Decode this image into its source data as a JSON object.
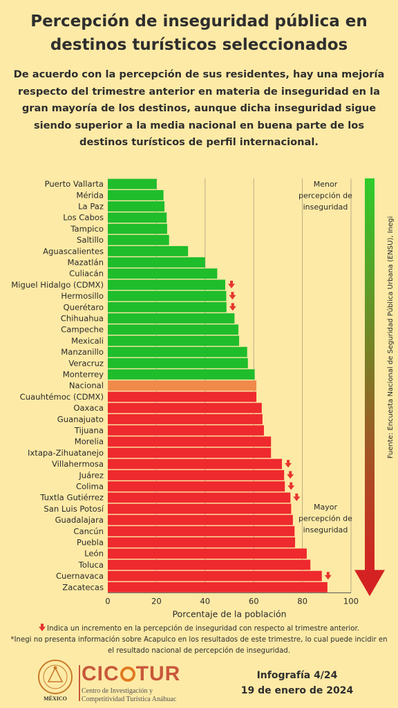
{
  "header": {
    "title": "Percepción de inseguridad pública en destinos turísticos seleccionados",
    "subtitle": "De acuerdo con la percepción de sus residentes, hay una mejoría respecto del trimestre anterior en materia de inseguridad en la gran mayoría de los destinos, aunque dicha inseguridad sigue siendo superior a la media nacional en buena parte de los destinos turísticos de perfil internacional."
  },
  "chart_data": {
    "type": "bar",
    "orientation": "horizontal",
    "xlabel": "Porcentaje de la población",
    "xlim": [
      0,
      100
    ],
    "xticks": [
      "0",
      "20",
      "40",
      "60",
      "80",
      "100"
    ],
    "grid": true,
    "categories": [
      "Puerto Vallarta",
      "Mérida",
      "La Paz",
      "Los Cabos",
      "Tampico",
      "Saltillo",
      "Aguascalientes",
      "Mazatlán",
      "Culiacán",
      "Miguel Hidalgo (CDMX)",
      "Hermosillo",
      "Querétaro",
      "Chihuahua",
      "Campeche",
      "Mexicali",
      "Manzanillo",
      "Veracruz",
      "Monterrey",
      "Nacional",
      "Cuauhtémoc (CDMX)",
      "Oaxaca",
      "Guanajuato",
      "Tijuana",
      "Morelia",
      "Ixtapa-Zihuatanejo",
      "Villahermosa",
      "Juárez",
      "Colima",
      "Tuxtla Gutiérrez",
      "San Luis Potosí",
      "Guadalajara",
      "Cancún",
      "Puebla",
      "León",
      "Toluca",
      "Cuernavaca",
      "Zacatecas"
    ],
    "values": [
      20.1,
      22.9,
      23.3,
      24.2,
      24.4,
      25.2,
      33.0,
      40.0,
      45.0,
      48.3,
      48.7,
      48.8,
      52.1,
      53.7,
      54.0,
      57.3,
      57.6,
      60.4,
      61.1,
      61.1,
      63.3,
      63.6,
      64.2,
      67.1,
      67.1,
      71.6,
      72.5,
      72.8,
      75.1,
      75.4,
      76.1,
      76.8,
      77.0,
      81.8,
      83.3,
      88.0,
      90.3
    ],
    "increase_flags": [
      false,
      false,
      false,
      false,
      false,
      false,
      false,
      false,
      false,
      true,
      true,
      true,
      false,
      false,
      false,
      false,
      false,
      false,
      false,
      false,
      false,
      false,
      false,
      false,
      false,
      true,
      true,
      true,
      true,
      false,
      false,
      false,
      false,
      false,
      false,
      true,
      false
    ],
    "reference_category": "Nacional",
    "colors": {
      "below_national": "#1fbd2c",
      "national": "#f08a4b",
      "above_national": "#ee2a2e",
      "increase_arrow": "#e8342f"
    },
    "scale_labels": {
      "top": "Menor percepción de inseguridad",
      "bottom": "Mayor percepción de inseguridad"
    },
    "scale_gradient": [
      "#2ecc2a",
      "#d42222"
    ],
    "source": "Fuente: Encuesta Nacional de Seguridad Pública Urbana (ENSU), Inegi"
  },
  "footnotes": {
    "arrow_note": "Indica un incremento en la percepción de inseguridad con respecto al trimestre anterior.",
    "acapulco_note": "*Inegi no presenta información sobre Acapulco en los resultados de este trimestre, lo cual puede incidir en el resultado nacional de percepción de inseguridad."
  },
  "branding": {
    "logo_name": "CICOTUR",
    "logo_subtitle_1": "Centro de Investigación y",
    "logo_subtitle_2": "Competitividad Turística Anáhuac",
    "seal_text": "MÉXICO",
    "seal_ring_text": "UNIVERSIDAD ANÁHUAC",
    "seal_motto": "VINCE IN BONO MALUM",
    "infografia": "Infografía 4/24",
    "date": "19 de enero de 2024"
  }
}
